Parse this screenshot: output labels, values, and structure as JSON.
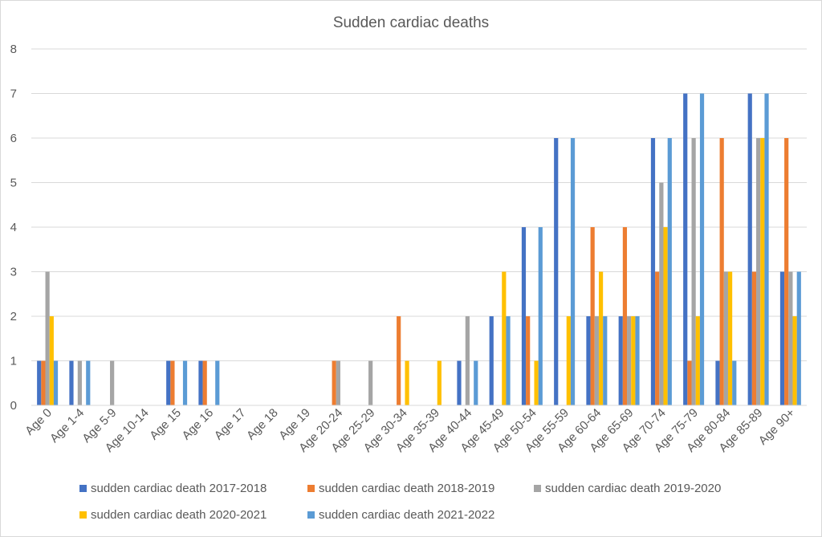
{
  "chart_data": {
    "type": "bar",
    "title": "Sudden cardiac deaths",
    "xlabel": "",
    "ylabel": "",
    "ylim": [
      0,
      8
    ],
    "yticks": [
      0,
      1,
      2,
      3,
      4,
      5,
      6,
      7,
      8
    ],
    "grid": "horizontal",
    "legend_position": "bottom",
    "categories": [
      "Age 0",
      "Age 1-4",
      "Age 5-9",
      "Age 10-14",
      "Age 15",
      "Age 16",
      "Age 17",
      "Age 18",
      "Age 19",
      "Age 20-24",
      "Age 25-29",
      "Age 30-34",
      "Age 35-39",
      "Age 40-44",
      "Age 45-49",
      "Age 50-54",
      "Age 55-59",
      "Age 60-64",
      "Age 65-69",
      "Age 70-74",
      "Age 75-79",
      "Age 80-84",
      "Age 85-89",
      "Age 90+"
    ],
    "series": [
      {
        "name": "sudden cardiac death 2017-2018",
        "color": "#4472C4",
        "values": [
          1,
          1,
          0,
          0,
          1,
          1,
          0,
          0,
          0,
          0,
          0,
          0,
          0,
          1,
          2,
          4,
          6,
          2,
          2,
          6,
          7,
          1,
          7,
          3
        ]
      },
      {
        "name": "sudden cardiac death 2018-2019",
        "color": "#ED7D31",
        "values": [
          1,
          0,
          0,
          0,
          1,
          1,
          0,
          0,
          0,
          1,
          0,
          2,
          0,
          0,
          0,
          2,
          0,
          4,
          4,
          3,
          1,
          6,
          3,
          6
        ]
      },
      {
        "name": "sudden cardiac death 2019-2020",
        "color": "#A5A5A5",
        "values": [
          3,
          1,
          1,
          0,
          0,
          0,
          0,
          0,
          0,
          1,
          1,
          0,
          0,
          2,
          0,
          0,
          0,
          2,
          2,
          5,
          6,
          3,
          6,
          3
        ]
      },
      {
        "name": "sudden cardiac death 2020-2021",
        "color": "#FFC000",
        "values": [
          2,
          0,
          0,
          0,
          0,
          0,
          0,
          0,
          0,
          0,
          0,
          1,
          1,
          0,
          3,
          1,
          2,
          3,
          2,
          4,
          2,
          3,
          6,
          2
        ]
      },
      {
        "name": "sudden cardiac death 2021-2022",
        "color": "#5B9BD5",
        "values": [
          1,
          1,
          0,
          0,
          1,
          1,
          0,
          0,
          0,
          0,
          0,
          0,
          0,
          1,
          2,
          4,
          6,
          2,
          2,
          6,
          7,
          1,
          7,
          3
        ]
      }
    ]
  }
}
